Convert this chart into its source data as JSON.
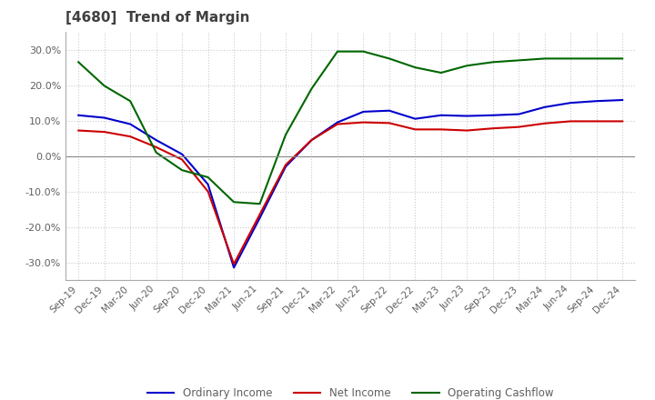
{
  "title": "[4680]  Trend of Margin",
  "title_color": "#404040",
  "background_color": "#ffffff",
  "plot_background_color": "#ffffff",
  "grid_color": "#cccccc",
  "ylim": [
    -0.35,
    0.35
  ],
  "yticks": [
    -0.3,
    -0.2,
    -0.1,
    0.0,
    0.1,
    0.2,
    0.3
  ],
  "x_labels": [
    "Sep-19",
    "Dec-19",
    "Mar-20",
    "Jun-20",
    "Sep-20",
    "Dec-20",
    "Mar-21",
    "Jun-21",
    "Sep-21",
    "Dec-21",
    "Mar-22",
    "Jun-22",
    "Sep-22",
    "Dec-22",
    "Mar-23",
    "Jun-23",
    "Sep-23",
    "Dec-23",
    "Mar-24",
    "Jun-24",
    "Sep-24",
    "Dec-24"
  ],
  "ordinary_income": [
    0.115,
    0.108,
    0.09,
    0.045,
    0.005,
    -0.08,
    -0.315,
    -0.175,
    -0.03,
    0.045,
    0.095,
    0.125,
    0.128,
    0.105,
    0.115,
    0.113,
    0.115,
    0.118,
    0.138,
    0.15,
    0.155,
    0.158
  ],
  "net_income": [
    0.072,
    0.068,
    0.055,
    0.025,
    -0.01,
    -0.1,
    -0.305,
    -0.165,
    -0.025,
    0.045,
    0.09,
    0.095,
    0.093,
    0.075,
    0.075,
    0.072,
    0.078,
    0.082,
    0.092,
    0.098,
    0.098,
    0.098
  ],
  "operating_cashflow": [
    0.265,
    0.198,
    0.155,
    0.01,
    -0.04,
    -0.06,
    -0.13,
    -0.135,
    0.06,
    0.19,
    0.295,
    0.295,
    0.275,
    0.25,
    0.235,
    0.255,
    0.265,
    0.27,
    0.275,
    0.275,
    0.275,
    0.275
  ],
  "ordinary_income_color": "#0000cc",
  "net_income_color": "#cc0000",
  "operating_cashflow_color": "#006600",
  "line_width": 1.5,
  "legend_ncol": 3
}
